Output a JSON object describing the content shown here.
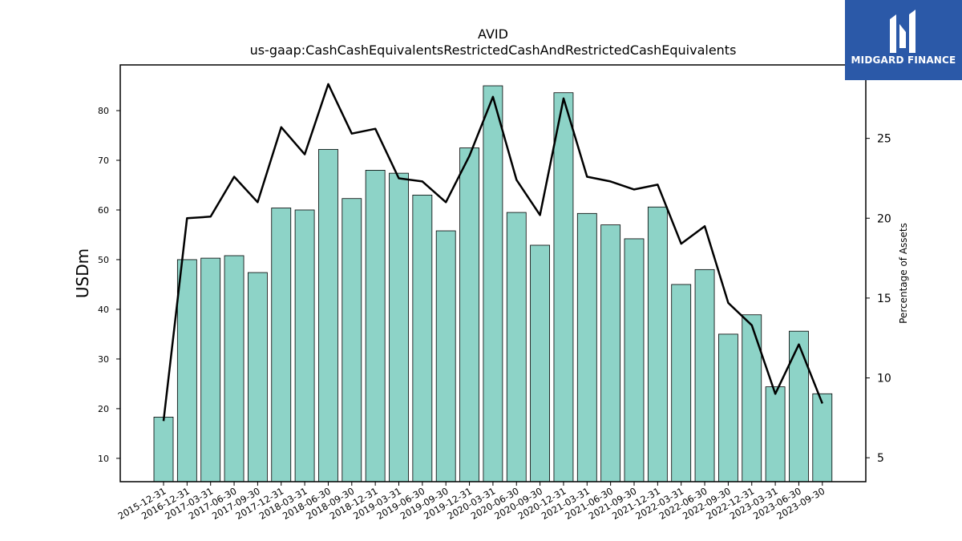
{
  "chart_data": {
    "type": "bar+line",
    "title": "AVID",
    "subtitle": "us-gaap:CashCashEquivalentsRestrictedCashAndRestrictedCashEquivalents",
    "ylabel": "USDm",
    "y2label": "Percentage of Assets",
    "ylim": [
      5.3,
      89.2
    ],
    "y2lim": [
      3.5,
      29.6
    ],
    "yticks": [
      10,
      20,
      30,
      40,
      50,
      60,
      70,
      80
    ],
    "y2ticks": [
      5,
      10,
      15,
      20,
      25
    ],
    "categories": [
      "2015-12-31",
      "2016-12-31",
      "2017-03-31",
      "2017-06-30",
      "2017-09-30",
      "2017-12-31",
      "2018-03-31",
      "2018-06-30",
      "2018-09-30",
      "2018-12-31",
      "2019-03-31",
      "2019-06-30",
      "2019-09-30",
      "2019-12-31",
      "2020-03-31",
      "2020-06-30",
      "2020-09-30",
      "2020-12-31",
      "2021-03-31",
      "2021-06-30",
      "2021-09-30",
      "2021-12-31",
      "2022-03-31",
      "2022-06-30",
      "2022-09-30",
      "2022-12-31",
      "2023-03-31",
      "2023-06-30",
      "2023-09-30"
    ],
    "series": [
      {
        "type": "bar",
        "axis": "left",
        "color": "#8dd3c7",
        "values": [
          18.3,
          50.0,
          50.3,
          50.8,
          47.4,
          60.4,
          60.0,
          72.2,
          62.3,
          68.0,
          67.4,
          63.0,
          55.8,
          72.5,
          85.0,
          59.5,
          52.9,
          83.6,
          59.3,
          57.0,
          54.2,
          60.6,
          45.0,
          48.0,
          35.0,
          38.9,
          24.4,
          35.6,
          23.0
        ]
      },
      {
        "type": "line",
        "axis": "right",
        "color": "#000000",
        "values": [
          7.3,
          20.0,
          20.1,
          22.6,
          21.0,
          25.7,
          24.0,
          28.4,
          25.3,
          25.6,
          22.5,
          22.3,
          21.0,
          23.9,
          27.6,
          22.4,
          20.2,
          27.5,
          22.6,
          22.3,
          21.8,
          22.1,
          18.4,
          19.5,
          14.7,
          13.3,
          9.0,
          12.1,
          8.4
        ]
      }
    ]
  },
  "brand": {
    "name": "MIDGARD FINANCE",
    "color": "#2b59a8"
  }
}
